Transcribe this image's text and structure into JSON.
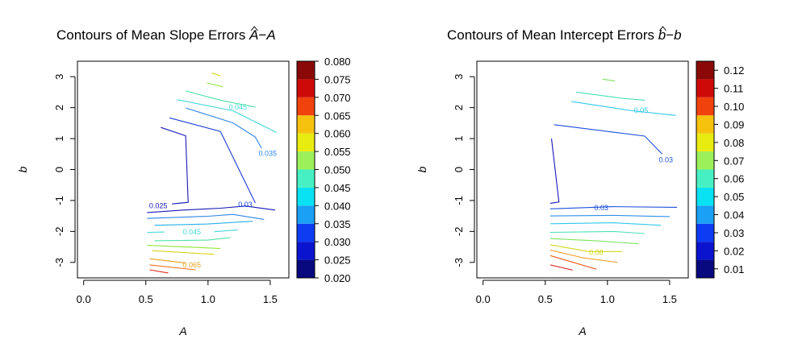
{
  "chart_data": [
    {
      "type": "contour",
      "title": "Contours of Mean Slope Errors Â − A",
      "title_text": "Contours of Mean Slope Errors ",
      "title_math": {
        "hat": "A",
        "minus": "−",
        "base": "A"
      },
      "xlabel": "A",
      "ylabel": "b",
      "xlim": [
        -0.05,
        1.65
      ],
      "ylim": [
        -3.5,
        3.5
      ],
      "xticks": [
        0.0,
        0.5,
        1.0,
        1.5
      ],
      "xtick_labels": [
        "0.0",
        "0.5",
        "1.0",
        "1.5"
      ],
      "yticks": [
        -3,
        -2,
        -1,
        0,
        1,
        2,
        3
      ],
      "ytick_labels": [
        "-3",
        "-2",
        "-1",
        "0",
        "1",
        "2",
        "3"
      ],
      "colorbar": {
        "levels": [
          0.02,
          0.025,
          0.03,
          0.035,
          0.04,
          0.045,
          0.05,
          0.055,
          0.06,
          0.065,
          0.07,
          0.075,
          0.08
        ],
        "tick_labels": [
          "0.020",
          "0.025",
          "0.030",
          "0.035",
          "0.040",
          "0.045",
          "0.050",
          "0.055",
          "0.060",
          "0.065",
          "0.070",
          "0.075",
          "0.080"
        ]
      },
      "contours": [
        {
          "level": 0.025,
          "label": "0.025",
          "label_at": [
            0.6,
            -1.19
          ],
          "color": "#1818b8",
          "points": [
            [
              0.62,
              1.36
            ],
            [
              0.82,
              1.09
            ],
            [
              0.84,
              -1.06
            ],
            [
              0.71,
              -1.11
            ]
          ]
        },
        {
          "level": 0.025,
          "label": "",
          "color": "#1818b8",
          "points": [
            [
              0.51,
              -1.39
            ],
            [
              0.8,
              -1.31
            ],
            [
              1.1,
              -1.25
            ],
            [
              1.3,
              -1.18
            ],
            [
              1.54,
              -1.31
            ]
          ]
        },
        {
          "level": 0.03,
          "label": "0.03",
          "label_at": [
            1.3,
            -1.15
          ],
          "color": "#1d3fd6",
          "points": [
            [
              0.69,
              1.67
            ],
            [
              1.1,
              1.23
            ],
            [
              1.38,
              -1.08
            ]
          ]
        },
        {
          "level": 0.035,
          "label": "0.035",
          "label_at": [
            1.48,
            0.5
          ],
          "color": "#2f86e8",
          "points": [
            [
              0.82,
              1.99
            ],
            [
              1.2,
              1.51
            ],
            [
              1.38,
              1.05
            ],
            [
              1.43,
              0.69
            ]
          ]
        },
        {
          "level": 0.035,
          "label": "",
          "color": "#2f86e8",
          "points": [
            [
              0.51,
              -1.58
            ],
            [
              1.0,
              -1.51
            ],
            [
              1.2,
              -1.45
            ],
            [
              1.45,
              -1.61
            ]
          ]
        },
        {
          "level": 0.04,
          "label": "",
          "color": "#28b0ea",
          "points": [
            [
              0.57,
              -1.8
            ],
            [
              1.0,
              -1.76
            ],
            [
              1.36,
              -1.67
            ]
          ]
        },
        {
          "level": 0.045,
          "label": "0.045",
          "label_at": [
            1.24,
            2.0
          ],
          "color": "#44d6da",
          "points": [
            [
              0.75,
              2.26
            ],
            [
              1.2,
              1.9
            ],
            [
              1.55,
              1.2
            ]
          ]
        },
        {
          "level": 0.045,
          "label": "0.045",
          "label_at": [
            0.87,
            -2.03
          ],
          "color": "#44d6da",
          "points": [
            [
              0.51,
              -2.03
            ],
            [
              0.65,
              -2.02
            ]
          ]
        },
        {
          "level": 0.045,
          "label": "",
          "color": "#44d6da",
          "points": [
            [
              1.05,
              -2.01
            ],
            [
              1.24,
              -1.95
            ]
          ]
        },
        {
          "level": 0.05,
          "label": "",
          "color": "#4ce0a6",
          "points": [
            [
              0.82,
              2.54
            ],
            [
              1.12,
              2.22
            ],
            [
              1.38,
              2.02
            ]
          ]
        },
        {
          "level": 0.05,
          "label": "",
          "color": "#4ce0a6",
          "points": [
            [
              0.57,
              -2.3
            ],
            [
              1.0,
              -2.28
            ],
            [
              1.18,
              -2.2
            ]
          ]
        },
        {
          "level": 0.055,
          "label": "",
          "color": "#8ee63c",
          "points": [
            [
              0.99,
              2.8
            ],
            [
              1.12,
              2.67
            ]
          ]
        },
        {
          "level": 0.055,
          "label": "",
          "color": "#8ee63c",
          "points": [
            [
              0.51,
              -2.45
            ],
            [
              1.1,
              -2.55
            ]
          ]
        },
        {
          "level": 0.06,
          "label": "",
          "color": "#d9d21a",
          "points": [
            [
              1.03,
              3.12
            ],
            [
              1.1,
              3.03
            ]
          ]
        },
        {
          "level": 0.06,
          "label": "",
          "color": "#d9d21a",
          "points": [
            [
              0.55,
              -2.62
            ],
            [
              1.05,
              -2.74
            ]
          ]
        },
        {
          "level": 0.065,
          "label": "0.065",
          "label_at": [
            0.87,
            -3.1
          ],
          "color": "#e8a020",
          "points": [
            [
              0.53,
              -2.88
            ],
            [
              0.82,
              -3.02
            ]
          ]
        },
        {
          "level": 0.07,
          "label": "",
          "color": "#ec7020",
          "points": [
            [
              0.53,
              -3.08
            ],
            [
              0.9,
              -3.24
            ]
          ]
        },
        {
          "level": 0.075,
          "label": "",
          "color": "#dd2a1a",
          "points": [
            [
              0.53,
              -3.24
            ],
            [
              0.68,
              -3.34
            ]
          ]
        }
      ]
    },
    {
      "type": "contour",
      "title": "Contours of Mean Intercept Errors b̂ − b",
      "title_text": "Contours of Mean Intercept Errors ",
      "title_math": {
        "hat": "b",
        "minus": "−",
        "base": "b"
      },
      "xlabel": "A",
      "ylabel": "b",
      "xlim": [
        -0.05,
        1.65
      ],
      "ylim": [
        -3.5,
        3.5
      ],
      "xticks": [
        0.0,
        0.5,
        1.0,
        1.5
      ],
      "xtick_labels": [
        "0.0",
        "0.5",
        "1.0",
        "1.5"
      ],
      "yticks": [
        -3,
        -2,
        -1,
        0,
        1,
        2,
        3
      ],
      "ytick_labels": [
        "-3",
        "-2",
        "-1",
        "0",
        "1",
        "2",
        "3"
      ],
      "colorbar": {
        "levels": [
          0.005,
          0.015,
          0.025,
          0.035,
          0.045,
          0.055,
          0.065,
          0.075,
          0.085,
          0.095,
          0.105,
          0.115,
          0.125
        ],
        "tick_labels": [
          "0.01",
          "0.02",
          "0.03",
          "0.04",
          "0.05",
          "0.06",
          "0.07",
          "0.08",
          "0.09",
          "0.10",
          "0.11",
          "0.12"
        ]
      },
      "contours": [
        {
          "level": 0.02,
          "label": "",
          "color": "#1818b8",
          "points": [
            [
              0.55,
              1.0
            ],
            [
              0.61,
              -1.05
            ],
            [
              0.54,
              -1.09
            ]
          ]
        },
        {
          "level": 0.03,
          "label": "0.03",
          "label_at": [
            1.47,
            0.3
          ],
          "color": "#1d50dd",
          "points": [
            [
              0.57,
              1.45
            ],
            [
              1.3,
              1.08
            ],
            [
              1.44,
              0.5
            ]
          ]
        },
        {
          "level": 0.03,
          "label": "0.03",
          "label_at": [
            0.95,
            -1.25
          ],
          "color": "#1d50dd",
          "points": [
            [
              0.54,
              -1.27
            ],
            [
              1.05,
              -1.2
            ],
            [
              1.56,
              -1.22
            ]
          ]
        },
        {
          "level": 0.04,
          "label": "",
          "color": "#3090e8",
          "points": [
            [
              0.54,
              -1.5
            ],
            [
              1.05,
              -1.48
            ],
            [
              1.5,
              -1.52
            ]
          ]
        },
        {
          "level": 0.05,
          "label": "0.05",
          "label_at": [
            1.27,
            1.9
          ],
          "color": "#30c8ea",
          "points": [
            [
              0.71,
              2.2
            ],
            [
              1.2,
              1.9
            ],
            [
              1.55,
              1.75
            ]
          ]
        },
        {
          "level": 0.05,
          "label": "",
          "color": "#30c8ea",
          "points": [
            [
              0.54,
              -1.75
            ],
            [
              1.05,
              -1.72
            ],
            [
              1.43,
              -1.8
            ]
          ]
        },
        {
          "level": 0.06,
          "label": "",
          "color": "#48e0b8",
          "points": [
            [
              0.75,
              2.5
            ],
            [
              1.12,
              2.3
            ],
            [
              1.3,
              2.24
            ]
          ]
        },
        {
          "level": 0.06,
          "label": "",
          "color": "#48e0b8",
          "points": [
            [
              0.54,
              -2.03
            ],
            [
              1.05,
              -2.0
            ],
            [
              1.3,
              -2.07
            ]
          ]
        },
        {
          "level": 0.07,
          "label": "",
          "color": "#7ee460",
          "points": [
            [
              0.54,
              -2.23
            ],
            [
              0.9,
              -2.3
            ],
            [
              1.25,
              -2.4
            ]
          ]
        },
        {
          "level": 0.07,
          "label": "",
          "color": "#7ee460",
          "points": [
            [
              0.96,
              2.92
            ],
            [
              1.06,
              2.86
            ]
          ]
        },
        {
          "level": 0.08,
          "label": "0.08",
          "label_at": [
            0.91,
            -2.7
          ],
          "color": "#d0d81a",
          "points": [
            [
              0.54,
              -2.43
            ],
            [
              0.85,
              -2.65
            ],
            [
              1.12,
              -2.65
            ]
          ]
        },
        {
          "level": 0.09,
          "label": "",
          "color": "#ee9a1e",
          "points": [
            [
              0.54,
              -2.6
            ],
            [
              0.8,
              -2.85
            ],
            [
              1.08,
              -3.0
            ]
          ]
        },
        {
          "level": 0.1,
          "label": "",
          "color": "#ec6020",
          "points": [
            [
              0.54,
              -2.78
            ],
            [
              0.91,
              -3.22
            ]
          ]
        },
        {
          "level": 0.11,
          "label": "",
          "color": "#d81a1a",
          "points": [
            [
              0.54,
              -3.08
            ],
            [
              0.72,
              -3.25
            ]
          ]
        }
      ]
    }
  ],
  "colors": {
    "colorbar": [
      "#08087f",
      "#0a14cf",
      "#0d3cf2",
      "#1e6cf2",
      "#1aa0f4",
      "#08e2f2",
      "#46f0c2",
      "#9cf05a",
      "#e9ec10",
      "#f7c20e",
      "#f7860a",
      "#f0420c",
      "#ce0a08",
      "#8a0808"
    ]
  }
}
